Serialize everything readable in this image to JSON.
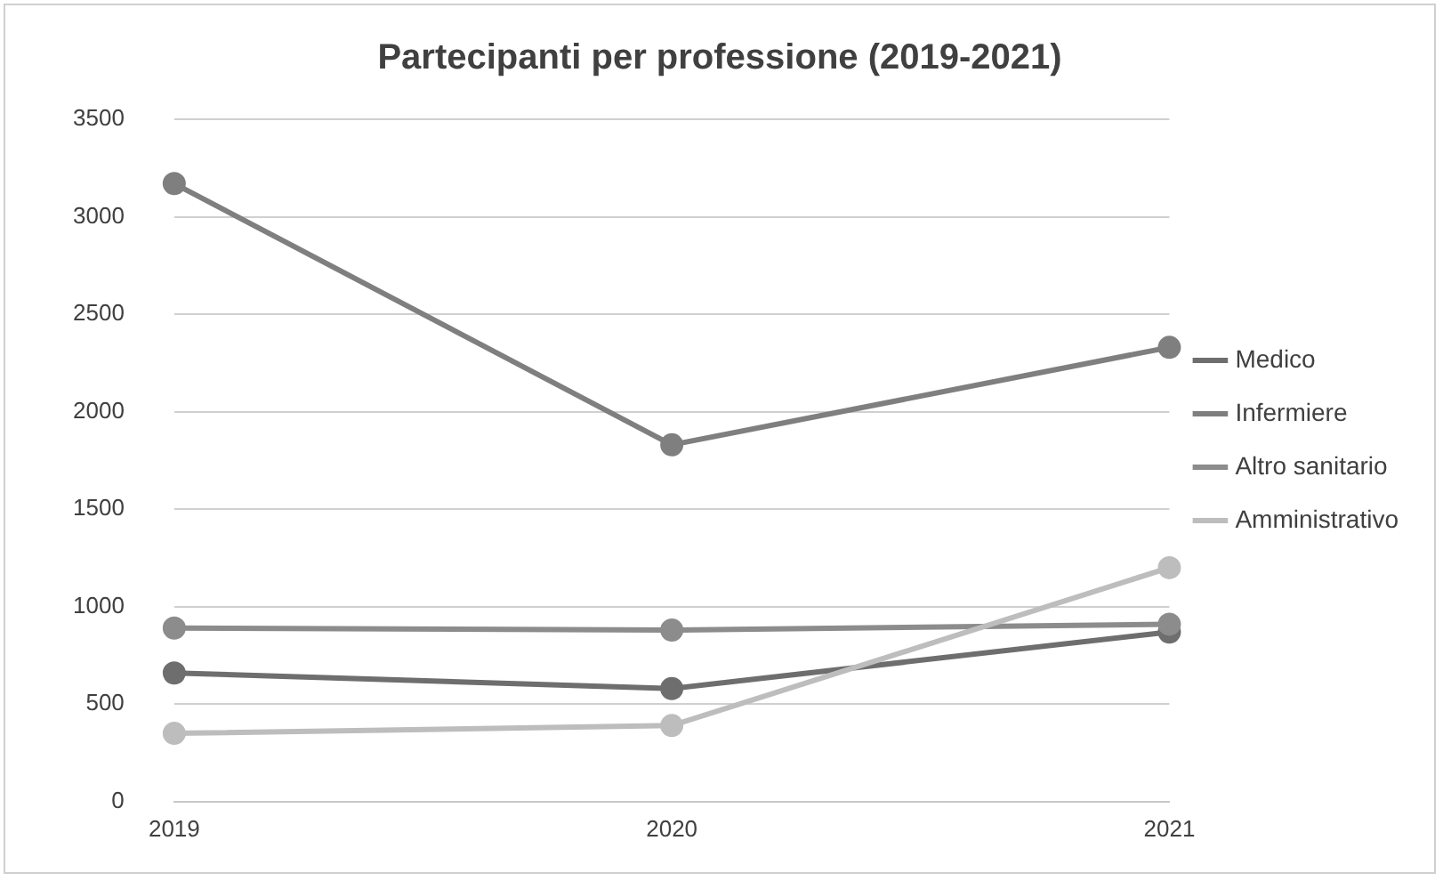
{
  "chart_data": {
    "type": "line",
    "title": "Partecipanti per professione (2019-2021)",
    "categories": [
      "2019",
      "2020",
      "2021"
    ],
    "series": [
      {
        "name": "Medico",
        "color": "#6e6e6e",
        "values": [
          660,
          580,
          870
        ]
      },
      {
        "name": "Infermiere",
        "color": "#7f7f7f",
        "values": [
          3170,
          1830,
          2330
        ]
      },
      {
        "name": "Altro sanitario",
        "color": "#8c8c8c",
        "values": [
          890,
          880,
          910
        ]
      },
      {
        "name": "Amministrativo",
        "color": "#bdbdbd",
        "values": [
          350,
          390,
          1200
        ]
      }
    ],
    "ylim": [
      0,
      3500
    ],
    "yticks": [
      0,
      500,
      1000,
      1500,
      2000,
      2500,
      3000,
      3500
    ],
    "grid": "y",
    "legend": "right",
    "marker": "circle",
    "line_style": "solid"
  }
}
